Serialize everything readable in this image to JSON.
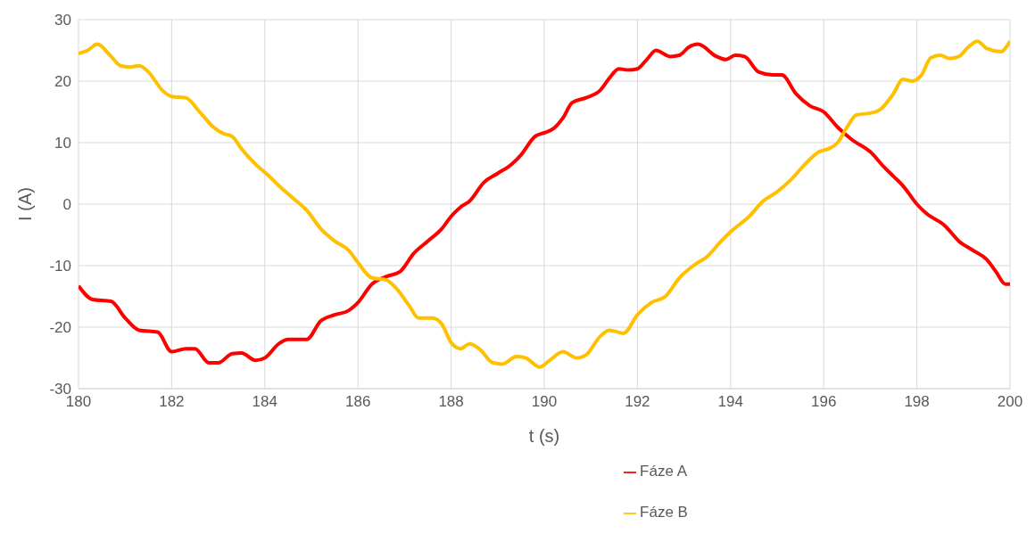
{
  "chart_data": {
    "type": "line",
    "xlabel": "t (s)",
    "ylabel": "I (A)",
    "xlim": [
      180,
      200
    ],
    "xticks": [
      180,
      182,
      184,
      186,
      188,
      190,
      192,
      194,
      196,
      198,
      200
    ],
    "ylim": [
      -30,
      30
    ],
    "yticks": [
      -30,
      -20,
      -10,
      0,
      10,
      20,
      30
    ],
    "grid": true,
    "legend": "bottom",
    "marker": "none",
    "line_style": "solid",
    "series": [
      {
        "name": "Fáze A",
        "color": "#ff0000",
        "x": [
          180,
          180.3,
          180.7,
          181,
          181.3,
          181.7,
          182,
          182.3,
          182.5,
          182.8,
          183,
          183.3,
          183.5,
          183.8,
          184,
          184.3,
          184.5,
          184.9,
          185.2,
          185.5,
          185.8,
          186,
          186.3,
          186.6,
          186.9,
          187.2,
          187.5,
          187.8,
          188,
          188.2,
          188.4,
          188.7,
          189,
          189.3,
          189.5,
          189.8,
          190,
          190.2,
          190.4,
          190.6,
          190.9,
          191.2,
          191.4,
          191.6,
          191.8,
          192,
          192.2,
          192.4,
          192.7,
          192.9,
          193.1,
          193.3,
          193.7,
          193.9,
          194.1,
          194.3,
          194.6,
          194.9,
          195.1,
          195.4,
          195.7,
          196,
          196.3,
          196.6,
          197,
          197.3,
          197.5,
          197.7,
          198,
          198.2,
          198.6,
          198.9,
          199.2,
          199.5,
          199.7,
          199.9,
          200
        ],
        "values": [
          -13.3,
          -15.5,
          -15.8,
          -18.5,
          -20.5,
          -20.8,
          -24,
          -23.5,
          -23.5,
          -25.8,
          -25.8,
          -24.3,
          -24.2,
          -25.4,
          -25,
          -22.7,
          -22,
          -22,
          -19,
          -18,
          -17.3,
          -16,
          -13,
          -11.8,
          -11,
          -8,
          -6,
          -4,
          -2,
          -0.5,
          0.5,
          3.5,
          5,
          6.5,
          8,
          11,
          11.6,
          12.3,
          14,
          16.5,
          17.3,
          18.5,
          20.5,
          22,
          21.8,
          22,
          23.5,
          25,
          24,
          24.2,
          25.5,
          26,
          24,
          23.5,
          24.2,
          24,
          21.5,
          21,
          21,
          18,
          16,
          15,
          12.5,
          10.5,
          8.5,
          6,
          4.5,
          3,
          0,
          -1.5,
          -3.5,
          -6,
          -7.5,
          -9,
          -11,
          -13,
          -13
        ]
      },
      {
        "name": "Fáze B",
        "color": "#ffc000",
        "x": [
          180,
          180.2,
          180.4,
          180.7,
          180.9,
          181.1,
          181.3,
          181.5,
          181.8,
          182,
          182.3,
          182.6,
          182.9,
          183.1,
          183.3,
          183.5,
          183.8,
          184.1,
          184.3,
          184.6,
          184.9,
          185.2,
          185.5,
          185.8,
          186,
          186.3,
          186.6,
          186.8,
          187.1,
          187.3,
          187.6,
          187.8,
          188,
          188.2,
          188.4,
          188.6,
          188.9,
          189.1,
          189.4,
          189.6,
          189.9,
          190.1,
          190.4,
          190.7,
          190.9,
          191.2,
          191.4,
          191.7,
          192,
          192.3,
          192.6,
          192.9,
          193.2,
          193.5,
          193.8,
          194,
          194.4,
          194.7,
          195,
          195.3,
          195.6,
          195.9,
          196.1,
          196.3,
          196.5,
          196.7,
          197,
          197.2,
          197.5,
          197.7,
          197.9,
          198.1,
          198.3,
          198.5,
          198.7,
          198.9,
          199.1,
          199.3,
          199.5,
          199.8,
          200
        ],
        "values": [
          24.5,
          25,
          26,
          24,
          22.5,
          22.3,
          22.5,
          21.5,
          18.5,
          17.5,
          17.3,
          15,
          12.5,
          11.5,
          11,
          9,
          6.5,
          4.5,
          3,
          1,
          -1,
          -4,
          -6,
          -7.5,
          -9.5,
          -12,
          -12.3,
          -13.5,
          -16.5,
          -18.5,
          -18.5,
          -19.5,
          -22.5,
          -23.5,
          -22.7,
          -23.5,
          -25.8,
          -26,
          -24.8,
          -25,
          -26.5,
          -25.5,
          -24,
          -25,
          -24.5,
          -21.5,
          -20.5,
          -21,
          -18,
          -16,
          -15,
          -12,
          -10,
          -8.5,
          -6,
          -4.5,
          -2,
          0.5,
          2,
          4,
          6.5,
          8.5,
          9,
          10,
          12.5,
          14.5,
          14.8,
          15.3,
          18,
          20.3,
          20,
          21,
          23.8,
          24.2,
          23.7,
          24,
          25.5,
          26.5,
          25.3,
          24.8,
          26.5
        ]
      }
    ]
  }
}
